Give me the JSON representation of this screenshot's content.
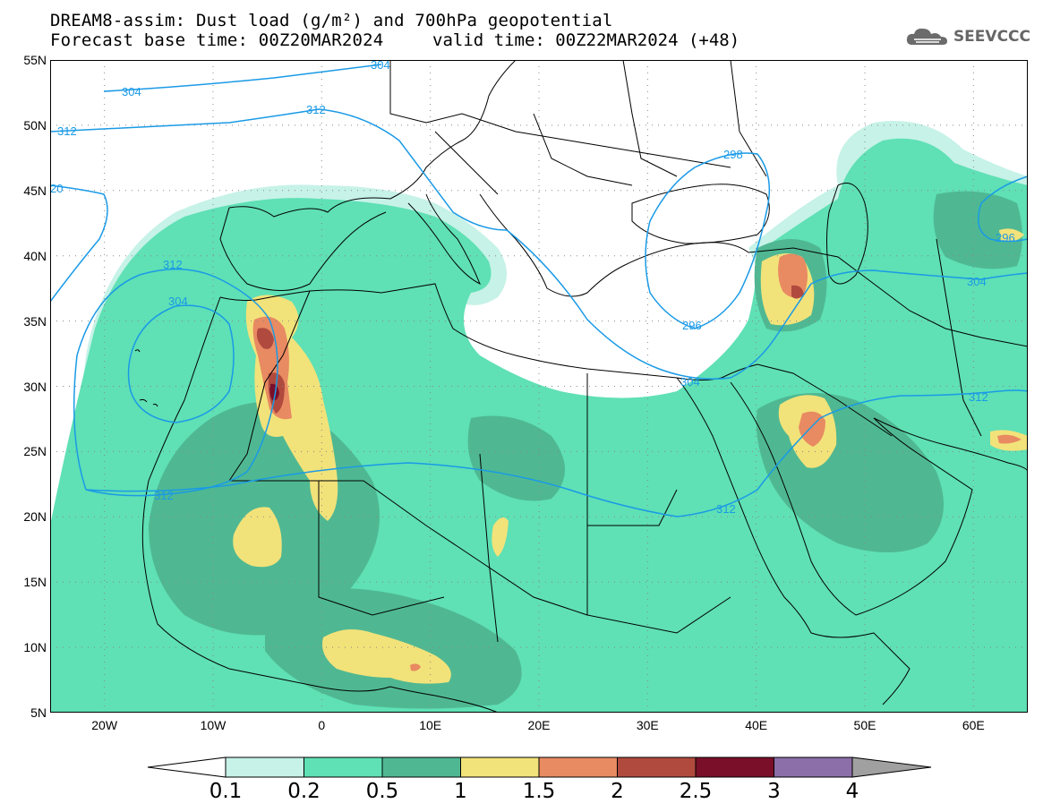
{
  "title": {
    "line1": "DREAM8-assim: Dust load (g/m²) and 700hPa geopotential",
    "base": "Forecast base time: 00Z20MAR2024",
    "valid": "valid time: 00Z22MAR2024 (+48)"
  },
  "logo": {
    "text": "SEEVCCC",
    "icon": "cloud-icon"
  },
  "axes": {
    "y_labels": [
      "55N",
      "50N",
      "45N",
      "40N",
      "35N",
      "30N",
      "25N",
      "20N",
      "15N",
      "10N",
      "5N"
    ],
    "x_labels": [
      "20W",
      "10W",
      "0",
      "10E",
      "20E",
      "30E",
      "40E",
      "50E",
      "60E"
    ],
    "lon_range": [
      -25,
      65
    ],
    "lat_range": [
      5,
      55
    ]
  },
  "contour_labels": {
    "c304_nw": "304",
    "c304_n": "304",
    "c312_a": "312",
    "c312_b": "312",
    "c20": "20",
    "c312_c": "312",
    "c304_d": "304",
    "c312_e": "312",
    "c298": "298",
    "c296_a": "296",
    "c304_e": "304",
    "c296_b": "296",
    "c304_f": "304",
    "c312_f": "312",
    "c312_g": "312"
  },
  "colorbar": {
    "labels": [
      "0.1",
      "0.2",
      "0.5",
      "1",
      "1.5",
      "2",
      "2.5",
      "3",
      "4"
    ],
    "colors": [
      "#c6f2e7",
      "#5fe0b5",
      "#4fb892",
      "#f2e27a",
      "#e88a62",
      "#b04a3e",
      "#7a0f2a",
      "#8c6ea8"
    ],
    "over_color": "#a0a0a0",
    "under_color": "#ffffff"
  },
  "colors": {
    "contour": "#1a9ae6",
    "border": "#000000"
  }
}
